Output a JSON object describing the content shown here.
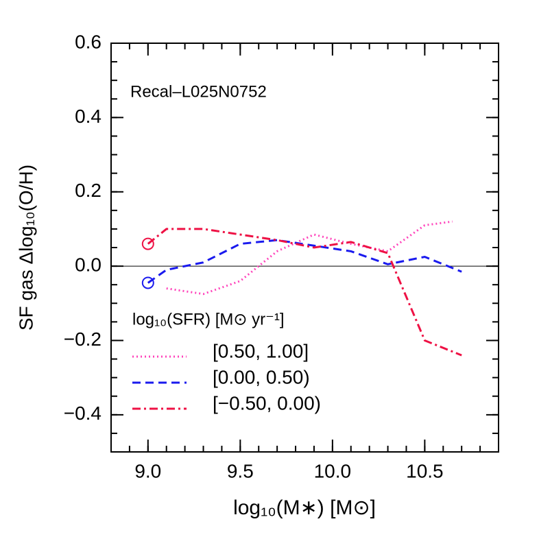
{
  "chart_data": {
    "type": "line",
    "annotation": "Recal–L025N0752",
    "x_label": "log₁₀(M∗)  [M⊙]",
    "y_label": "SF gas  Δlog₁₀(O/H)",
    "legend_title": "log₁₀(SFR)  [M⊙ yr⁻¹]",
    "xlim": [
      8.8,
      10.9
    ],
    "ylim": [
      -0.5,
      0.6
    ],
    "xticks": [
      {
        "value": 9.0,
        "label": "9.0"
      },
      9.5,
      {
        "value": 10.0,
        "label": "10.0"
      },
      10.5
    ],
    "yticks": [
      {
        "value": -0.4,
        "label": "−0.4"
      },
      {
        "value": -0.2,
        "label": "−0.2"
      },
      {
        "value": 0.0,
        "label": "0.0"
      },
      0.2,
      0.4,
      0.6
    ],
    "xminor_step": 0.1,
    "yminor_step": 0.05,
    "hline": 0,
    "series": [
      {
        "name": "[0.50, 1.00]",
        "color": "#ff44bb",
        "dash": "dotted",
        "x": [
          9.1,
          9.3,
          9.5,
          9.7,
          9.9,
          10.1,
          10.3,
          10.5,
          10.65
        ],
        "values": [
          -0.06,
          -0.075,
          -0.04,
          0.04,
          0.085,
          0.06,
          0.04,
          0.11,
          0.12
        ]
      },
      {
        "name": "[0.00, 0.50)",
        "color": "#1a1aee",
        "dash": "dashed",
        "start_marker": "circle",
        "x": [
          9.0,
          9.1,
          9.3,
          9.5,
          9.7,
          9.9,
          10.1,
          10.3,
          10.5,
          10.7
        ],
        "values": [
          -0.045,
          -0.01,
          0.01,
          0.06,
          0.07,
          0.055,
          0.04,
          0.005,
          0.025,
          -0.015
        ]
      },
      {
        "name": "[−0.50, 0.00)",
        "color": "#ee1144",
        "dash": "dashdot",
        "start_marker": "circle",
        "x": [
          9.0,
          9.1,
          9.3,
          9.5,
          9.7,
          9.9,
          10.1,
          10.3,
          10.5,
          10.7
        ],
        "values": [
          0.06,
          0.1,
          0.1,
          0.085,
          0.07,
          0.05,
          0.065,
          0.035,
          -0.2,
          -0.24
        ]
      }
    ]
  }
}
